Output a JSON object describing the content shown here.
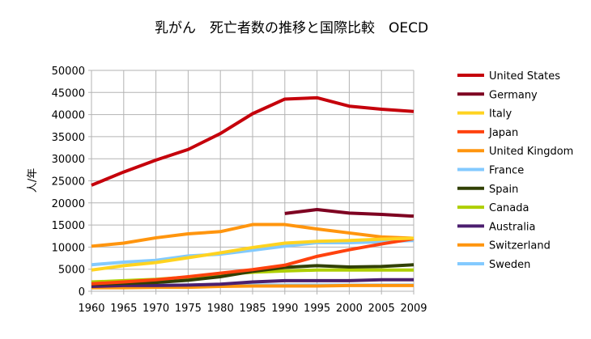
{
  "chart_data": {
    "type": "line",
    "title": "乳がん　死亡者数の推移と国際比較　OECD",
    "xlabel": "",
    "ylabel": "人/年",
    "ylim": [
      0,
      50000
    ],
    "yticks": [
      0,
      5000,
      10000,
      15000,
      20000,
      25000,
      30000,
      35000,
      40000,
      45000,
      50000
    ],
    "grid": true,
    "legend": "right",
    "categories": [
      "1960",
      "1965",
      "1970",
      "1975",
      "1980",
      "1985",
      "1990",
      "1995",
      "2000",
      "2005",
      "2009"
    ],
    "series": [
      {
        "name": "United States",
        "color": "#c5000b",
        "values": [
          24000,
          27000,
          29700,
          32100,
          35700,
          40200,
          43500,
          43800,
          41900,
          41200,
          40700
        ]
      },
      {
        "name": "Germany",
        "color": "#7e0021",
        "values": [
          null,
          null,
          null,
          null,
          null,
          null,
          17600,
          18500,
          17700,
          17400,
          17000
        ]
      },
      {
        "name": "Italy",
        "color": "#ffd320",
        "values": [
          4800,
          5800,
          6500,
          7600,
          8700,
          9900,
          10900,
          11300,
          11500,
          11800,
          12000
        ]
      },
      {
        "name": "Japan",
        "color": "#ff420e",
        "values": [
          1700,
          2100,
          2600,
          3300,
          4100,
          4900,
          5900,
          7900,
          9400,
          10700,
          11900
        ]
      },
      {
        "name": "United Kingdom",
        "color": "#ff950e",
        "values": [
          10200,
          10900,
          12100,
          13000,
          13500,
          15100,
          15100,
          14100,
          13200,
          12300,
          12000
        ]
      },
      {
        "name": "France",
        "color": "#83caff",
        "values": [
          6000,
          6600,
          7000,
          8000,
          8400,
          9300,
          10200,
          11000,
          11000,
          11200,
          11500
        ]
      },
      {
        "name": "Spain",
        "color": "#314004",
        "values": [
          1600,
          1800,
          2000,
          2500,
          3300,
          4500,
          5400,
          5800,
          5500,
          5600,
          6000
        ]
      },
      {
        "name": "Canada",
        "color": "#aecf00",
        "values": [
          2100,
          2400,
          2700,
          3200,
          3800,
          4300,
          4600,
          4800,
          4800,
          4800,
          4800
        ]
      },
      {
        "name": "Australia",
        "color": "#4b1f6f",
        "values": [
          1100,
          1300,
          1300,
          1400,
          1600,
          2100,
          2400,
          2400,
          2400,
          2600,
          2600
        ]
      },
      {
        "name": "Switzerland",
        "color": "#ff950e",
        "values": [
          800,
          800,
          900,
          900,
          1100,
          1200,
          1200,
          1200,
          1300,
          1300,
          1300
        ]
      },
      {
        "name": "Sweden",
        "color": "#83caff",
        "values": [
          1000,
          1200,
          1300,
          1400,
          1400,
          1400,
          1400,
          1400,
          1400,
          1400,
          1400
        ]
      }
    ]
  }
}
